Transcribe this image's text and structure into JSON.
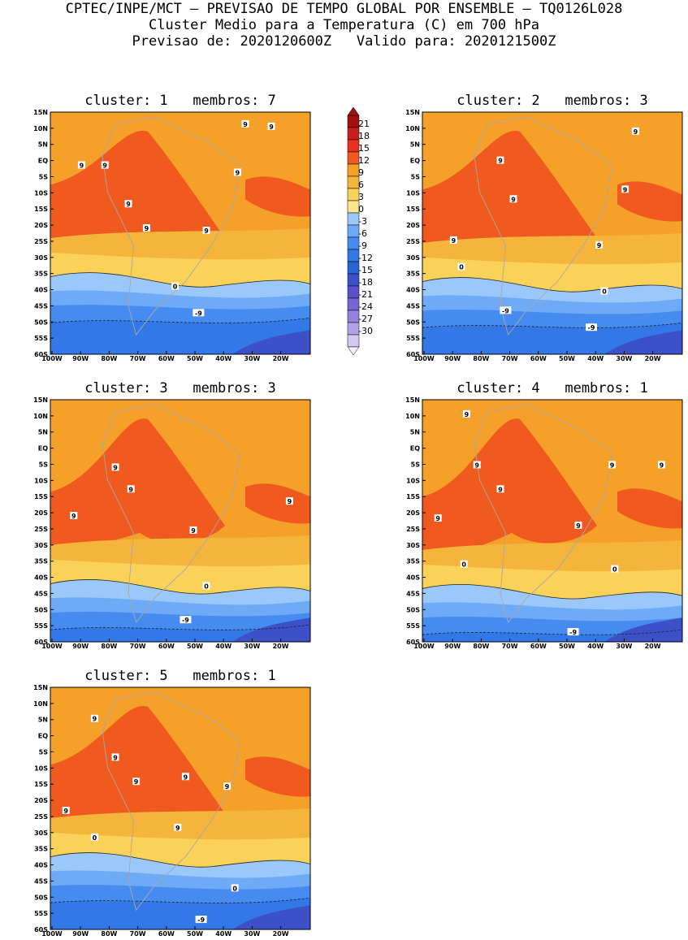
{
  "header": {
    "line1": "CPTEC/INPE/MCT — PREVISAO DE TEMPO GLOBAL POR ENSEMBLE — TQ0126L028",
    "line2": "Cluster Medio para a Temperatura (C) em 700 hPa",
    "line3": "Previsao de: 2020120600Z   Valido para: 2020121500Z"
  },
  "axes": {
    "lat_labels": [
      "15N",
      "10N",
      "5N",
      "EQ",
      "5S",
      "10S",
      "15S",
      "20S",
      "25S",
      "30S",
      "35S",
      "40S",
      "45S",
      "50S",
      "55S",
      "60S"
    ],
    "lon_labels": [
      "100W",
      "90W",
      "80W",
      "70W",
      "60W",
      "50W",
      "40W",
      "30W",
      "20W"
    ]
  },
  "colorbar": {
    "levels": [
      "21",
      "18",
      "15",
      "12",
      "9",
      "6",
      "3",
      "0",
      "-3",
      "-6",
      "-9",
      "-12",
      "-15",
      "-18",
      "-21",
      "-24",
      "-27",
      "-30"
    ],
    "colors": [
      "#a01010",
      "#c81e1e",
      "#e6321e",
      "#f05a1e",
      "#f5a028",
      "#f5b43c",
      "#fad25a",
      "#fce68c",
      "#9ac8fa",
      "#6eaaf5",
      "#468cf0",
      "#3278e6",
      "#2864d2",
      "#3c50c8",
      "#5a50c8",
      "#7864d2",
      "#9682dc",
      "#b4a0e6",
      "#d2c8f0"
    ]
  },
  "panels": [
    {
      "title": "cluster: 1   membros: 7",
      "contour_labels": [
        "9",
        "9",
        "9",
        "9",
        "9",
        "9",
        "9",
        "9",
        "0",
        "-9"
      ]
    },
    {
      "title": "cluster: 2   membros: 3",
      "contour_labels": [
        "9",
        "9",
        "9",
        "9",
        "9",
        "9",
        "0",
        "0",
        "-9",
        "-9"
      ]
    },
    {
      "title": "cluster: 3   membros: 3",
      "contour_labels": [
        "9",
        "9",
        "9",
        "9",
        "9",
        "0",
        "-9"
      ]
    },
    {
      "title": "cluster: 4   membros: 1",
      "contour_labels": [
        "9",
        "9",
        "9",
        "9",
        "9",
        "9",
        "9",
        "0",
        "0",
        "-9"
      ]
    },
    {
      "title": "cluster: 5   membros: 1",
      "contour_labels": [
        "9",
        "9",
        "9",
        "9",
        "9",
        "9",
        "9",
        "0",
        "0",
        "-9"
      ]
    }
  ]
}
